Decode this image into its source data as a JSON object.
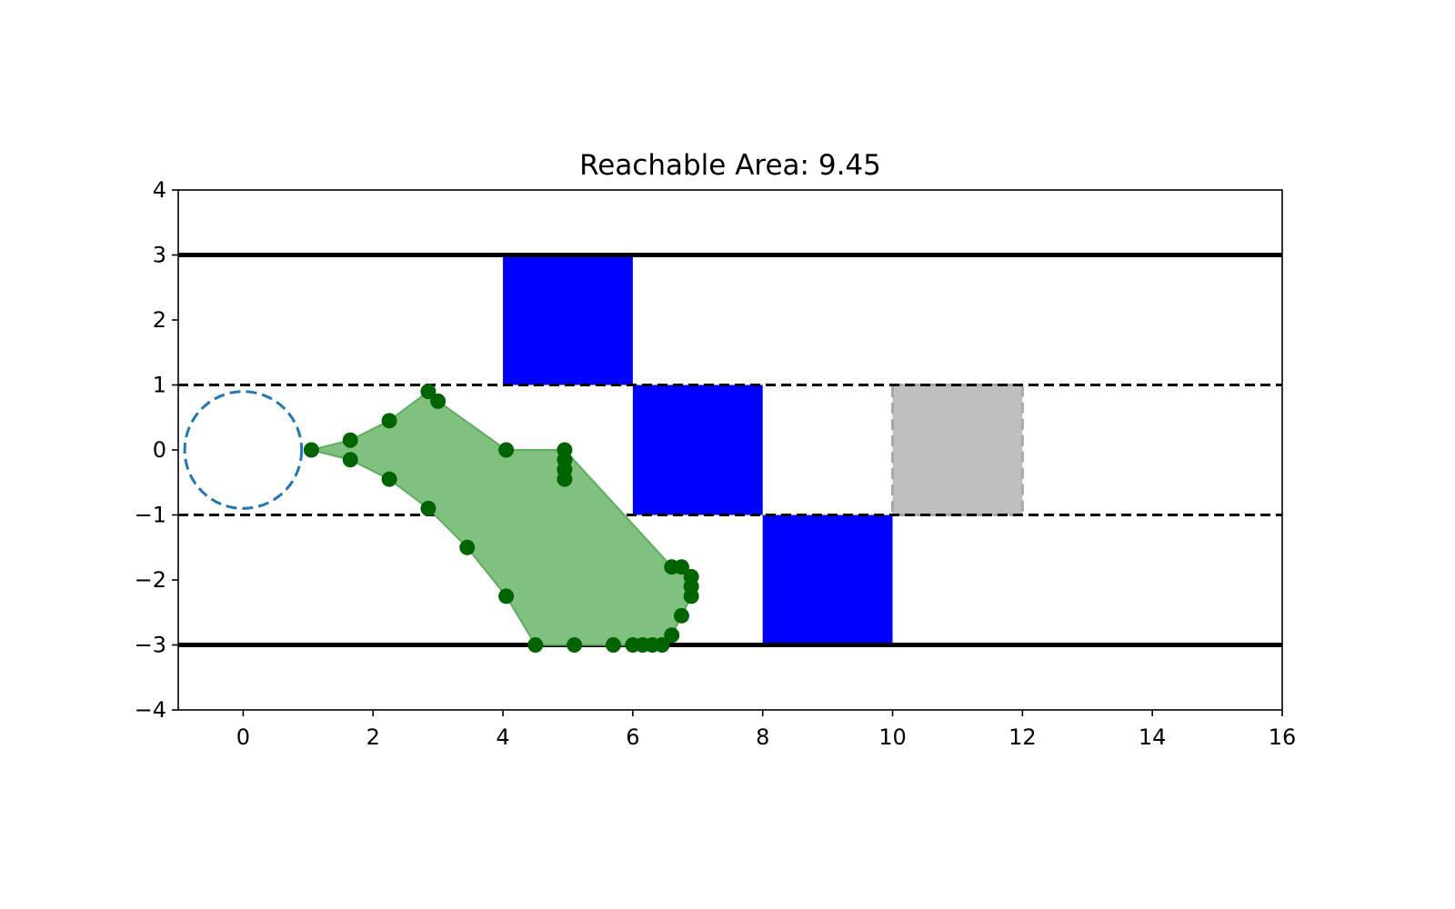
{
  "chart_data": {
    "type": "scatter",
    "title": "Reachable Area: 9.45",
    "xlabel": "",
    "ylabel": "",
    "xlim": [
      -1,
      16
    ],
    "ylim": [
      -4,
      4
    ],
    "xticks": [
      0,
      2,
      4,
      6,
      8,
      10,
      12,
      14,
      16
    ],
    "yticks": [
      -4,
      -3,
      -2,
      -1,
      0,
      1,
      2,
      3,
      4
    ],
    "xtick_labels": [
      "0",
      "2",
      "4",
      "6",
      "8",
      "10",
      "12",
      "14",
      "16"
    ],
    "ytick_labels": [
      "−4",
      "−3",
      "−2",
      "−1",
      "0",
      "1",
      "2",
      "3",
      "4"
    ],
    "grid": false,
    "boundary_lines": [
      {
        "y": 3,
        "style": "solid",
        "color": "#000000"
      },
      {
        "y": -3,
        "style": "solid",
        "color": "#000000"
      },
      {
        "y": 1,
        "style": "dashed",
        "color": "#000000"
      },
      {
        "y": -1,
        "style": "dashed",
        "color": "#000000"
      }
    ],
    "obstacles": [
      {
        "x0": 4,
        "x1": 6,
        "y0": 1,
        "y1": 3,
        "color": "#0000ff"
      },
      {
        "x0": 6,
        "x1": 8,
        "y0": -1,
        "y1": 1,
        "color": "#0000ff"
      },
      {
        "x0": 8,
        "x1": 10,
        "y0": -3,
        "y1": -1,
        "color": "#0000ff"
      }
    ],
    "ghost_box": {
      "x0": 10,
      "x1": 12,
      "y0": -1,
      "y1": 1,
      "color": "#bfbfbf",
      "edge_color": "#a8a8a8"
    },
    "start_circle": {
      "cx": 0,
      "cy": 0,
      "r": 0.9,
      "color": "#1f77b4"
    },
    "reachable_polygon": {
      "fill": "#80c080",
      "edge": "#5cae5c",
      "points": [
        [
          1.05,
          0
        ],
        [
          1.65,
          0.15
        ],
        [
          2.25,
          0.45
        ],
        [
          2.85,
          0.9
        ],
        [
          3.0,
          0.75
        ],
        [
          4.05,
          0
        ],
        [
          4.95,
          0
        ],
        [
          6.6,
          -1.8
        ],
        [
          6.75,
          -1.8
        ],
        [
          6.9,
          -1.95
        ],
        [
          6.9,
          -2.25
        ],
        [
          6.75,
          -2.55
        ],
        [
          6.6,
          -2.85
        ],
        [
          6.45,
          -3.0
        ],
        [
          4.5,
          -3.0
        ],
        [
          4.05,
          -2.25
        ],
        [
          3.45,
          -1.5
        ],
        [
          2.85,
          -0.9
        ],
        [
          2.25,
          -0.45
        ],
        [
          1.65,
          -0.15
        ]
      ]
    },
    "points_color": "#006400",
    "points": [
      [
        1.05,
        0
      ],
      [
        1.65,
        0.15
      ],
      [
        1.65,
        -0.15
      ],
      [
        2.25,
        0.45
      ],
      [
        2.25,
        -0.45
      ],
      [
        2.85,
        0.9
      ],
      [
        3.0,
        0.75
      ],
      [
        2.85,
        -0.9
      ],
      [
        3.45,
        -1.5
      ],
      [
        4.05,
        0
      ],
      [
        4.05,
        -2.25
      ],
      [
        4.95,
        0
      ],
      [
        4.95,
        -0.15
      ],
      [
        4.95,
        -0.3
      ],
      [
        4.95,
        -0.45
      ],
      [
        4.5,
        -3.0
      ],
      [
        5.1,
        -3.0
      ],
      [
        5.7,
        -3.0
      ],
      [
        6.0,
        -3.0
      ],
      [
        6.15,
        -3.0
      ],
      [
        6.3,
        -3.0
      ],
      [
        6.45,
        -3.0
      ],
      [
        6.6,
        -2.85
      ],
      [
        6.75,
        -2.55
      ],
      [
        6.9,
        -2.25
      ],
      [
        6.9,
        -2.1
      ],
      [
        6.9,
        -1.95
      ],
      [
        6.75,
        -1.8
      ],
      [
        6.6,
        -1.8
      ]
    ]
  }
}
